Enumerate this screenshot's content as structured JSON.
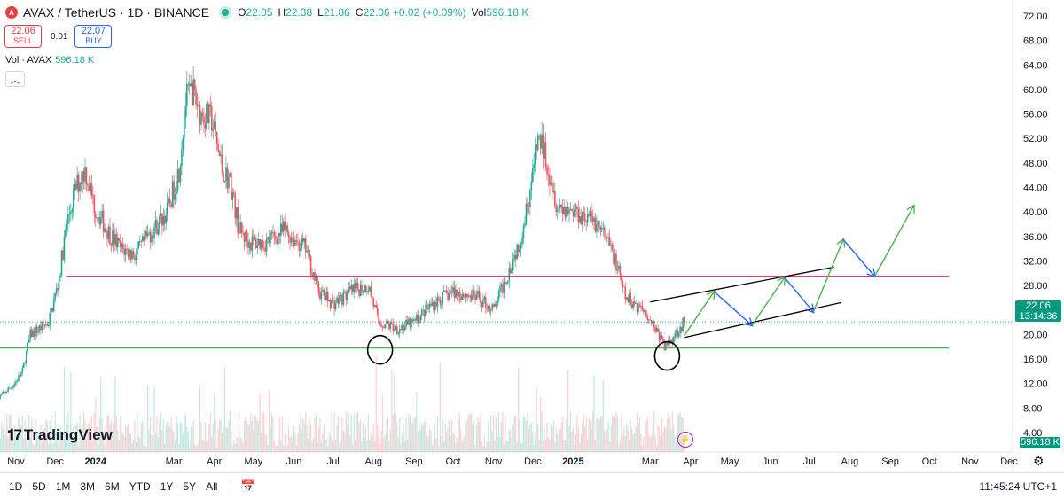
{
  "header": {
    "logo_letter": "A",
    "symbol": "AVAX / TetherUS · 1D · BINANCE",
    "open_label": "O",
    "open": "22.05",
    "high_label": "H",
    "high": "22.38",
    "low_label": "L",
    "low": "21.86",
    "close_label": "C",
    "close": "22.06 +0.02 (+0.09%)",
    "vol_label": "Vol",
    "vol": "596.18 K"
  },
  "trade": {
    "sell_price": "22.06",
    "sell_label": "SELL",
    "spread": "0.01",
    "buy_price": "22.07",
    "buy_label": "BUY"
  },
  "volume_legend": {
    "label": "Vol · AVAX",
    "value": "596.18 K"
  },
  "collapse_icon": "chevron-up-icon",
  "branding": {
    "logo": "TradingView"
  },
  "price_tag": {
    "price": "22.06",
    "countdown": "13:14:36"
  },
  "volume_tag": "596.18 K",
  "colors": {
    "up": "#22ab94",
    "down": "#f7525f",
    "resistance": "#e91e63",
    "support": "#4caf50",
    "channel": "#000000",
    "up_arrow": "#4caf50",
    "down_arrow": "#2962ff"
  },
  "bottom_bar": {
    "ranges": [
      "1D",
      "5D",
      "1M",
      "3M",
      "6M",
      "YTD",
      "1Y",
      "5Y",
      "All"
    ],
    "clock": "11:45:24 UTC+1"
  },
  "chart_data": {
    "type": "candlestick",
    "x_axis_labels": [
      {
        "label": "Nov",
        "date": "2023-11-01"
      },
      {
        "label": "Dec",
        "date": "2023-12-01"
      },
      {
        "label": "2024",
        "date": "2024-01-01"
      },
      {
        "label": "Mar",
        "date": "2024-03-01"
      },
      {
        "label": "Apr",
        "date": "2024-04-01"
      },
      {
        "label": "May",
        "date": "2024-05-01"
      },
      {
        "label": "Jun",
        "date": "2024-06-01"
      },
      {
        "label": "Jul",
        "date": "2024-07-01"
      },
      {
        "label": "Aug",
        "date": "2024-08-01"
      },
      {
        "label": "Sep",
        "date": "2024-09-01"
      },
      {
        "label": "Oct",
        "date": "2024-10-01"
      },
      {
        "label": "Nov",
        "date": "2024-11-01"
      },
      {
        "label": "Dec",
        "date": "2024-12-01"
      },
      {
        "label": "2025",
        "date": "2025-01-01"
      },
      {
        "label": "Mar",
        "date": "2025-03-01"
      },
      {
        "label": "Apr",
        "date": "2025-04-01"
      },
      {
        "label": "May",
        "date": "2025-05-01"
      },
      {
        "label": "Jun",
        "date": "2025-06-01"
      },
      {
        "label": "Jul",
        "date": "2025-07-01"
      },
      {
        "label": "Aug",
        "date": "2025-08-01"
      },
      {
        "label": "Sep",
        "date": "2025-09-01"
      },
      {
        "label": "Oct",
        "date": "2025-10-01"
      },
      {
        "label": "Nov",
        "date": "2025-11-01"
      },
      {
        "label": "Dec",
        "date": "2025-12-01"
      }
    ],
    "y_axis_labels": [
      "72.00",
      "68.00",
      "64.00",
      "60.00",
      "56.00",
      "52.00",
      "48.00",
      "44.00",
      "40.00",
      "36.00",
      "32.00",
      "28.00",
      "24.00",
      "20.00",
      "16.00",
      "12.00",
      "8.00",
      "4.00"
    ],
    "y_range": [
      0,
      73.5
    ],
    "price_path": [
      {
        "date": "2023-10-18",
        "price": 9.5
      },
      {
        "date": "2023-10-31",
        "price": 12
      },
      {
        "date": "2023-11-06",
        "price": 14
      },
      {
        "date": "2023-11-12",
        "price": 20
      },
      {
        "date": "2023-11-19",
        "price": 21
      },
      {
        "date": "2023-11-26",
        "price": 22
      },
      {
        "date": "2023-12-03",
        "price": 28
      },
      {
        "date": "2023-12-10",
        "price": 38
      },
      {
        "date": "2023-12-17",
        "price": 44
      },
      {
        "date": "2023-12-24",
        "price": 47
      },
      {
        "date": "2023-12-31",
        "price": 41
      },
      {
        "date": "2024-01-10",
        "price": 37
      },
      {
        "date": "2024-01-20",
        "price": 34
      },
      {
        "date": "2024-02-01",
        "price": 33
      },
      {
        "date": "2024-02-10",
        "price": 36
      },
      {
        "date": "2024-02-25",
        "price": 40
      },
      {
        "date": "2024-03-05",
        "price": 47
      },
      {
        "date": "2024-03-10",
        "price": 58
      },
      {
        "date": "2024-03-15",
        "price": 60
      },
      {
        "date": "2024-03-22",
        "price": 56
      },
      {
        "date": "2024-03-30",
        "price": 55
      },
      {
        "date": "2024-04-07",
        "price": 47
      },
      {
        "date": "2024-04-13",
        "price": 45
      },
      {
        "date": "2024-04-20",
        "price": 37
      },
      {
        "date": "2024-04-28",
        "price": 35
      },
      {
        "date": "2024-05-10",
        "price": 35
      },
      {
        "date": "2024-05-25",
        "price": 37
      },
      {
        "date": "2024-06-10",
        "price": 34
      },
      {
        "date": "2024-06-20",
        "price": 27
      },
      {
        "date": "2024-07-01",
        "price": 25
      },
      {
        "date": "2024-07-15",
        "price": 27
      },
      {
        "date": "2024-07-28",
        "price": 28
      },
      {
        "date": "2024-08-05",
        "price": 22
      },
      {
        "date": "2024-08-20",
        "price": 21
      },
      {
        "date": "2024-09-01",
        "price": 22
      },
      {
        "date": "2024-09-15",
        "price": 25
      },
      {
        "date": "2024-10-01",
        "price": 27
      },
      {
        "date": "2024-10-20",
        "price": 26
      },
      {
        "date": "2024-11-01",
        "price": 24
      },
      {
        "date": "2024-11-12",
        "price": 30
      },
      {
        "date": "2024-11-22",
        "price": 36
      },
      {
        "date": "2024-12-01",
        "price": 46
      },
      {
        "date": "2024-12-05",
        "price": 52
      },
      {
        "date": "2024-12-10",
        "price": 50
      },
      {
        "date": "2024-12-20",
        "price": 41
      },
      {
        "date": "2025-01-05",
        "price": 40
      },
      {
        "date": "2025-01-20",
        "price": 38
      },
      {
        "date": "2025-02-01",
        "price": 33
      },
      {
        "date": "2025-02-10",
        "price": 26
      },
      {
        "date": "2025-02-25",
        "price": 24
      },
      {
        "date": "2025-03-05",
        "price": 21
      },
      {
        "date": "2025-03-12",
        "price": 18
      },
      {
        "date": "2025-03-20",
        "price": 20
      },
      {
        "date": "2025-03-27",
        "price": 22.06
      }
    ],
    "last_price": 22.06,
    "horizontal_lines": [
      {
        "name": "resistance",
        "price": 29.5
      },
      {
        "name": "support",
        "price": 17.8
      }
    ],
    "channel_lines": [
      {
        "name": "channel-upper",
        "from": {
          "date": "2025-03-01",
          "price": 25.3
        },
        "to": {
          "date": "2025-07-20",
          "price": 31.0
        }
      },
      {
        "name": "channel-lower",
        "from": {
          "date": "2025-03-27",
          "price": 19.5
        },
        "to": {
          "date": "2025-07-25",
          "price": 25.2
        }
      }
    ],
    "projection_path": [
      {
        "date": "2025-03-27",
        "price": 19.8,
        "dir": "start"
      },
      {
        "date": "2025-04-19",
        "price": 27.0,
        "dir": "up"
      },
      {
        "date": "2025-05-18",
        "price": 21.5,
        "dir": "down"
      },
      {
        "date": "2025-06-12",
        "price": 29.3,
        "dir": "up"
      },
      {
        "date": "2025-07-04",
        "price": 23.7,
        "dir": "down"
      },
      {
        "date": "2025-07-27",
        "price": 35.5,
        "dir": "up"
      },
      {
        "date": "2025-08-20",
        "price": 29.5,
        "dir": "down"
      },
      {
        "date": "2025-09-19",
        "price": 41.0,
        "dir": "up"
      }
    ],
    "circle_annotations": [
      {
        "date": "2024-08-06",
        "price": 17.5
      },
      {
        "date": "2025-03-14",
        "price": 16.5
      }
    ]
  }
}
